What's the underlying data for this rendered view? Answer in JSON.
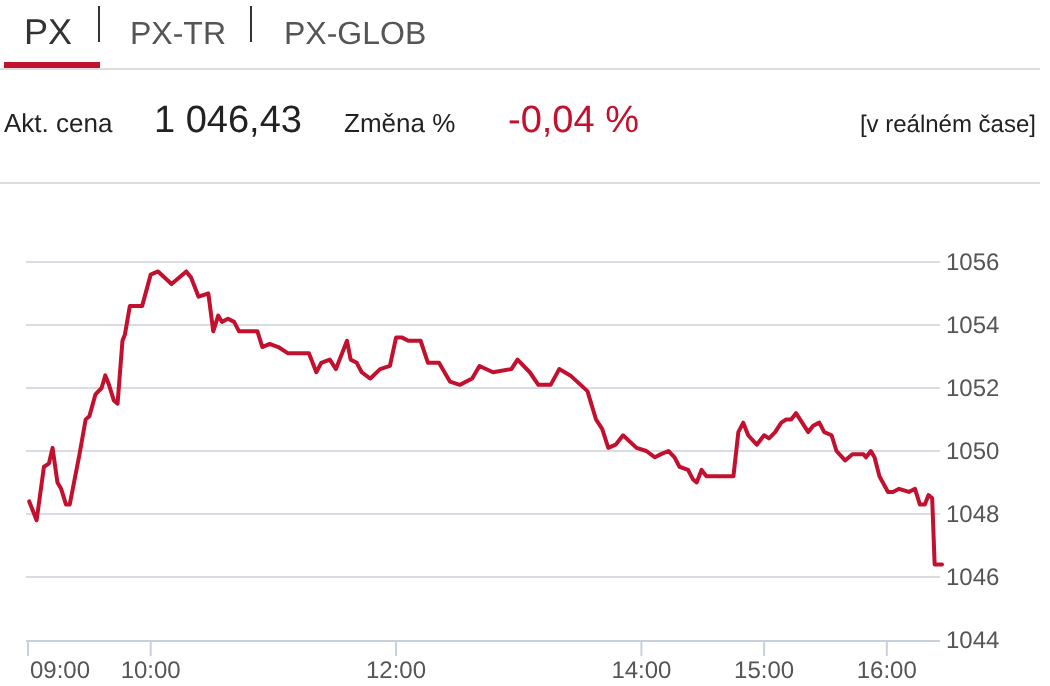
{
  "chart_data": {
    "type": "line",
    "title": "PX",
    "annotations": [
      "PX-TR",
      "PX-GLOB",
      "Akt. cena",
      "1 046,43",
      "Změna %",
      "-0,04 %",
      "[v reálném čase]"
    ],
    "series": [
      {
        "color": "#c3102f",
        "x": [
          9.01,
          9.07,
          9.13,
          9.17,
          9.2,
          9.24,
          9.27,
          9.31,
          9.34,
          9.38,
          9.42,
          9.47,
          9.5,
          9.55,
          9.6,
          9.63,
          9.66,
          9.7,
          9.73,
          9.77,
          9.79,
          9.83,
          9.88,
          9.93,
          10,
          10.06,
          10.17,
          10.29,
          10.33,
          10.39,
          10.47,
          10.51,
          10.55,
          10.58,
          10.63,
          10.68,
          10.72,
          10.87,
          10.91,
          10.97,
          11.04,
          11.12,
          11.29,
          11.35,
          11.39,
          11.46,
          11.51,
          11.6,
          11.63,
          11.68,
          11.72,
          11.79,
          11.87,
          11.95,
          12,
          12.05,
          12.1,
          12.2,
          12.26,
          12.35,
          12.44,
          12.52,
          12.62,
          12.68,
          12.79,
          12.94,
          12.99,
          13.09,
          13.16,
          13.26,
          13.33,
          13.42,
          13.56,
          13.63,
          13.68,
          13.73,
          13.79,
          13.85,
          13.96,
          14.04,
          14.11,
          14.16,
          14.22,
          14.27,
          14.31,
          14.38,
          14.42,
          14.45,
          14.49,
          14.53,
          14.75,
          14.79,
          14.83,
          14.87,
          14.94,
          15,
          15.04,
          15.09,
          15.14,
          15.18,
          15.22,
          15.26,
          15.31,
          15.36,
          15.4,
          15.45,
          15.49,
          15.55,
          15.59,
          15.66,
          15.72,
          15.81,
          15.83,
          15.87,
          15.9,
          15.94,
          16.01,
          16.05,
          16.1,
          16.18,
          16.23,
          16.27,
          16.31,
          16.34,
          16.37,
          16.39,
          16.45
        ],
        "values": [
          1048.4,
          1047.8,
          1049.5,
          1049.6,
          1050.1,
          1049,
          1048.8,
          1048.3,
          1048.3,
          1049.1,
          1049.9,
          1051,
          1051.1,
          1051.8,
          1052,
          1052.4,
          1052.1,
          1051.6,
          1051.5,
          1053.5,
          1053.7,
          1054.6,
          1054.6,
          1054.6,
          1055.6,
          1055.7,
          1055.3,
          1055.7,
          1055.5,
          1054.9,
          1055,
          1053.8,
          1054.3,
          1054.1,
          1054.2,
          1054.1,
          1053.8,
          1053.8,
          1053.3,
          1053.4,
          1053.3,
          1053.1,
          1053.1,
          1052.5,
          1052.8,
          1052.9,
          1052.6,
          1053.5,
          1052.9,
          1052.8,
          1052.5,
          1052.3,
          1052.6,
          1052.7,
          1053.6,
          1053.6,
          1053.5,
          1053.5,
          1052.8,
          1052.8,
          1052.2,
          1052.1,
          1052.3,
          1052.7,
          1052.5,
          1052.6,
          1052.9,
          1052.5,
          1052.1,
          1052.1,
          1052.6,
          1052.4,
          1051.9,
          1051,
          1050.7,
          1050.1,
          1050.2,
          1050.5,
          1050.1,
          1050,
          1049.8,
          1049.9,
          1050,
          1049.8,
          1049.5,
          1049.4,
          1049.1,
          1049,
          1049.4,
          1049.2,
          1049.2,
          1050.6,
          1050.9,
          1050.5,
          1050.2,
          1050.5,
          1050.4,
          1050.6,
          1050.9,
          1051,
          1051,
          1051.2,
          1050.9,
          1050.6,
          1050.8,
          1050.9,
          1050.6,
          1050.5,
          1050,
          1049.7,
          1049.9,
          1049.9,
          1049.8,
          1050,
          1049.8,
          1049.2,
          1048.7,
          1048.7,
          1048.8,
          1048.7,
          1048.8,
          1048.3,
          1048.3,
          1048.6,
          1048.5,
          1046.4,
          1046.4
        ]
      }
    ],
    "xlim": [
      9,
      16.45
    ],
    "xticks": [
      {
        "value": 9,
        "label": "09:00"
      },
      {
        "value": 10,
        "label": "10:00"
      },
      {
        "value": 12,
        "label": "12:00"
      },
      {
        "value": 14,
        "label": "14:00"
      },
      {
        "value": 15,
        "label": "15:00"
      },
      {
        "value": 16,
        "label": "16:00"
      }
    ],
    "ylim": [
      1044,
      1056
    ],
    "yticks": [
      1044,
      1046,
      1048,
      1050,
      1052,
      1054,
      1056
    ],
    "grid": "y",
    "marker": "none",
    "line_style": "solid"
  }
}
